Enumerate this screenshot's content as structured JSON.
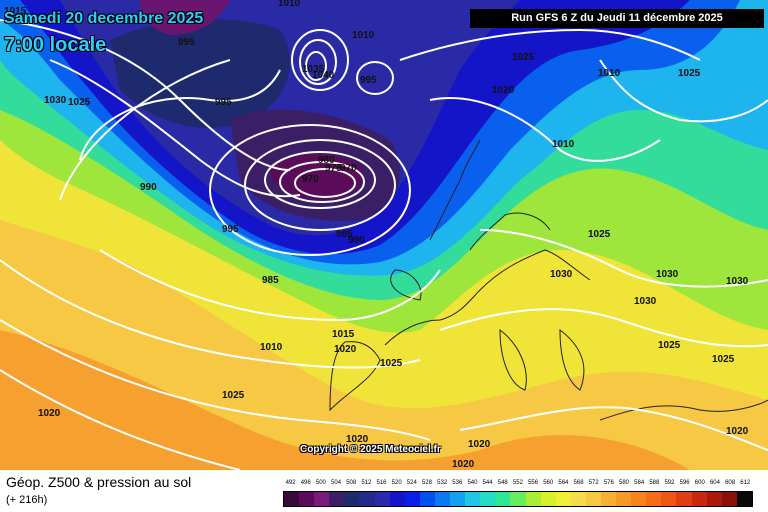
{
  "header": {
    "date_line": "Samedi 20 decembre 2025",
    "time_line": "7:00 locale",
    "run_info": "Run GFS 6 Z du Jeudi 11 décembre 2025"
  },
  "copyright": "Copyright © 2025 Meteociel.fr",
  "footer": {
    "title": "Géop. Z500 & pression au sol",
    "subtitle": "(+ 216h)"
  },
  "scale": {
    "values": [
      "492",
      "496",
      "500",
      "504",
      "508",
      "512",
      "516",
      "520",
      "524",
      "528",
      "532",
      "536",
      "540",
      "544",
      "548",
      "552",
      "556",
      "560",
      "564",
      "568",
      "572",
      "576",
      "580",
      "584",
      "588",
      "592",
      "596",
      "600",
      "604",
      "608",
      "612"
    ],
    "colors": [
      "#3a0a3a",
      "#5a0c5a",
      "#7a1a7a",
      "#3a1f66",
      "#1e2a6e",
      "#222a8a",
      "#2a2aaa",
      "#1414c8",
      "#0a1ee6",
      "#0050f0",
      "#0a78f0",
      "#16a0f0",
      "#20c6e6",
      "#26dcc8",
      "#30e696",
      "#66ec5c",
      "#a6ee3a",
      "#d8ef2c",
      "#f0ee36",
      "#f6dc4a",
      "#f6c844",
      "#f6b034",
      "#f69a28",
      "#f6841e",
      "#f46e18",
      "#ee5614",
      "#e03e10",
      "#c8280c",
      "#aa1a0a",
      "#8a1008",
      "#0a0a0a"
    ]
  },
  "isobars": [
    {
      "label": "1015"
    },
    {
      "label": "1020"
    },
    {
      "label": "1010"
    },
    {
      "label": "995"
    },
    {
      "label": "1030"
    },
    {
      "label": "1025"
    },
    {
      "label": "1010"
    },
    {
      "label": "1035"
    },
    {
      "label": "1040"
    },
    {
      "label": "995"
    },
    {
      "label": "995"
    },
    {
      "label": "1025"
    },
    {
      "label": "1010"
    },
    {
      "label": "1025"
    },
    {
      "label": "1020"
    },
    {
      "label": "990"
    },
    {
      "label": "980"
    },
    {
      "label": "975"
    },
    {
      "label": "970"
    },
    {
      "label": "970"
    },
    {
      "label": "1010"
    },
    {
      "label": "995"
    },
    {
      "label": "985"
    },
    {
      "label": "990"
    },
    {
      "label": "985"
    },
    {
      "label": "1025"
    },
    {
      "label": "1030"
    },
    {
      "label": "1030"
    },
    {
      "label": "1030"
    },
    {
      "label": "1030"
    },
    {
      "label": "1015"
    },
    {
      "label": "1010"
    },
    {
      "label": "1020"
    },
    {
      "label": "1025"
    },
    {
      "label": "1025"
    },
    {
      "label": "1025"
    },
    {
      "label": "1020"
    },
    {
      "label": "1025"
    },
    {
      "label": "1020"
    },
    {
      "label": "1020"
    },
    {
      "label": "1020"
    },
    {
      "label": "1020"
    }
  ]
}
